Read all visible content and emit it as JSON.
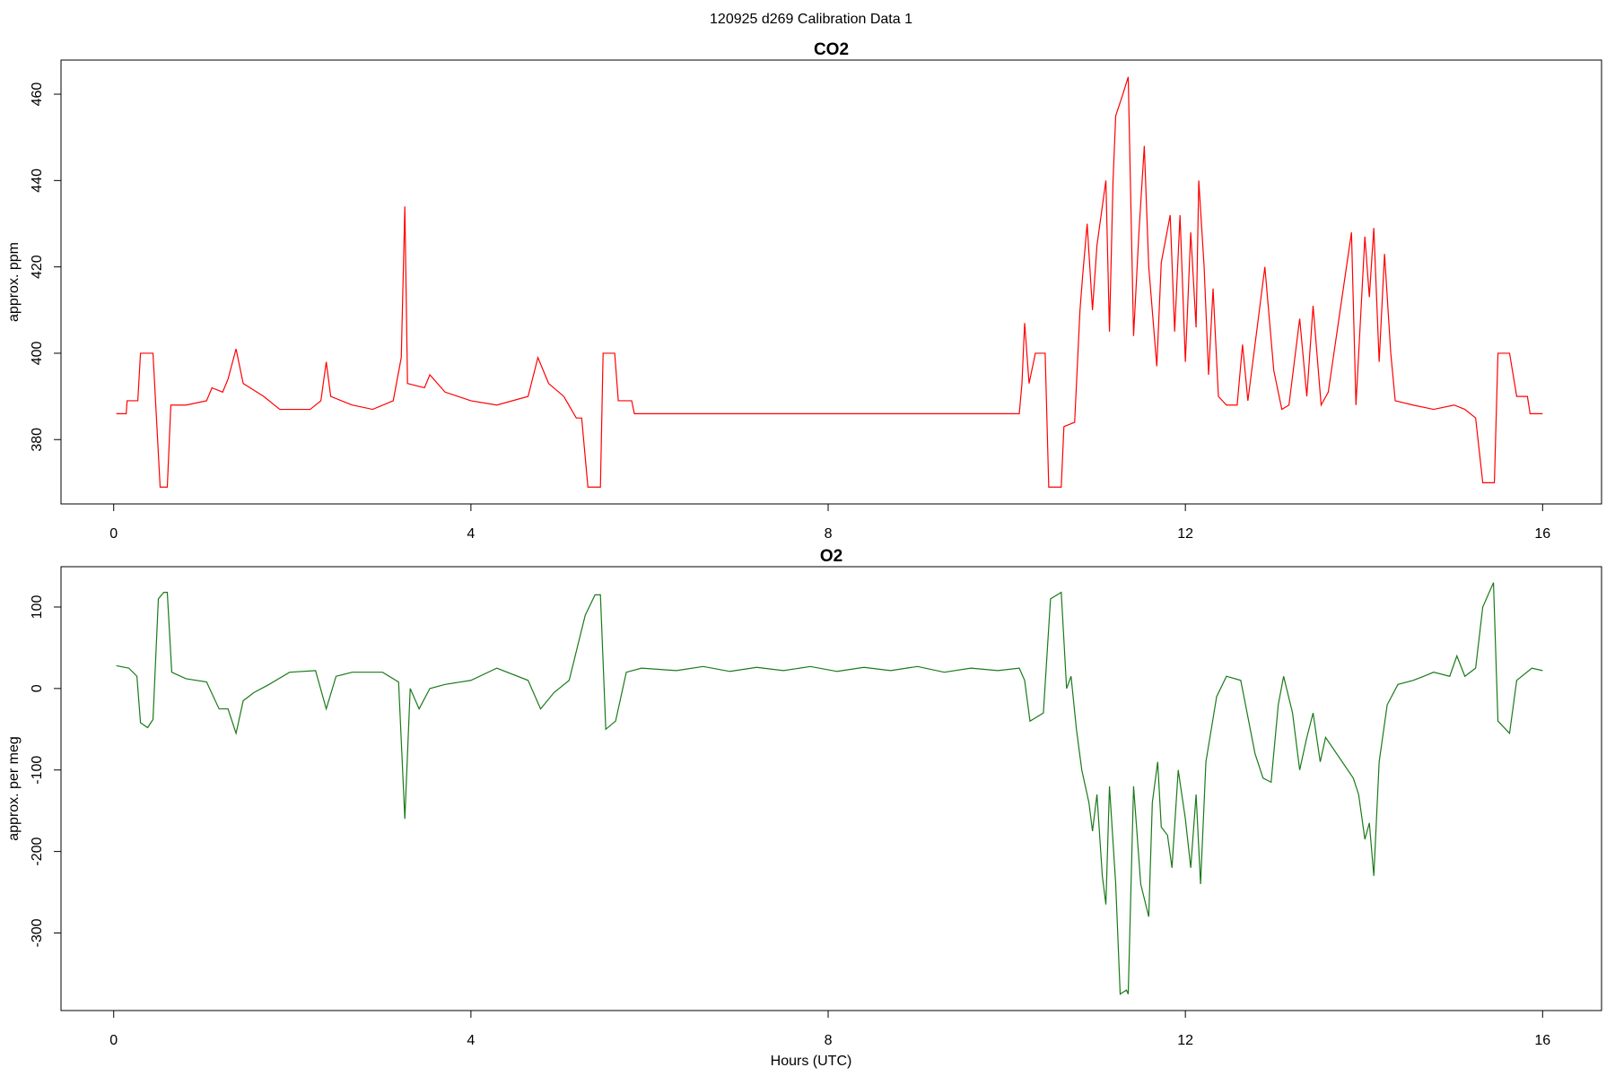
{
  "title": "120925   d269   Calibration Data 1",
  "chart_data": [
    {
      "type": "line",
      "title": "CO2",
      "y_label": "approx. ppm",
      "color": "#ff0000",
      "xlim": [
        -0.59,
        16.66
      ],
      "xticks": [
        0,
        4,
        8,
        12,
        16
      ],
      "ylim": [
        365.1,
        467.9
      ],
      "yticks": [
        380,
        400,
        420,
        440,
        460
      ],
      "x": [
        0.03,
        0.14,
        0.15,
        0.27,
        0.3,
        0.44,
        0.52,
        0.6,
        0.64,
        0.81,
        1.04,
        1.1,
        1.22,
        1.28,
        1.37,
        1.45,
        1.68,
        1.86,
        2.2,
        2.32,
        2.38,
        2.43,
        2.67,
        2.9,
        3.13,
        3.22,
        3.26,
        3.29,
        3.48,
        3.54,
        3.71,
        4.0,
        4.29,
        4.64,
        4.75,
        4.87,
        5.04,
        5.18,
        5.24,
        5.31,
        5.45,
        5.48,
        5.61,
        5.65,
        5.8,
        5.83,
        6.84,
        8.0,
        9.16,
        10.14,
        10.17,
        10.2,
        10.25,
        10.32,
        10.43,
        10.47,
        10.61,
        10.64,
        10.76,
        10.82,
        10.85,
        10.9,
        10.96,
        11.01,
        11.11,
        11.15,
        11.19,
        11.22,
        11.3,
        11.36,
        11.42,
        11.48,
        11.54,
        11.59,
        11.68,
        11.73,
        11.83,
        11.88,
        11.94,
        12.0,
        12.06,
        12.12,
        12.15,
        12.21,
        12.26,
        12.31,
        12.37,
        12.46,
        12.58,
        12.64,
        12.7,
        12.89,
        12.99,
        13.08,
        13.16,
        13.28,
        13.36,
        13.43,
        13.52,
        13.6,
        13.86,
        13.91,
        14.01,
        14.06,
        14.11,
        14.17,
        14.23,
        14.3,
        14.35,
        14.55,
        14.78,
        15.01,
        15.13,
        15.25,
        15.33,
        15.46,
        15.5,
        15.63,
        15.71,
        15.83,
        15.86,
        16.0
      ],
      "values": [
        386,
        386,
        389,
        389,
        400,
        400,
        369,
        369,
        388,
        388,
        389,
        392,
        391,
        394,
        401,
        393,
        390,
        387,
        387,
        389,
        398,
        390,
        388,
        387,
        389,
        399,
        434,
        393,
        392,
        395,
        391,
        389,
        388,
        390,
        399,
        393,
        390,
        385,
        385,
        369,
        369,
        400,
        400,
        389,
        389,
        386,
        386,
        386,
        386,
        386,
        393,
        407,
        393,
        400,
        400,
        369,
        369,
        383,
        384,
        410,
        418,
        430,
        410,
        425,
        440,
        405,
        440,
        455,
        460,
        464,
        404,
        428,
        448,
        420,
        397,
        421,
        432,
        405,
        432,
        398,
        428,
        406,
        440,
        420,
        395,
        415,
        390,
        388,
        388,
        402,
        389,
        420,
        396,
        387,
        388,
        408,
        390,
        411,
        388,
        391,
        428,
        388,
        427,
        413,
        429,
        398,
        423,
        400,
        389,
        388,
        387,
        388,
        387,
        385,
        370,
        370,
        400,
        400,
        390,
        390,
        386,
        386
      ]
    },
    {
      "type": "line",
      "title": "O2",
      "y_label": "approx. per meg",
      "x_label": "Hours (UTC)",
      "color": "#1a7a1a",
      "xlim": [
        -0.59,
        16.66
      ],
      "xticks": [
        0,
        4,
        8,
        12,
        16
      ],
      "ylim": [
        -395.2,
        149.5
      ],
      "yticks": [
        -300,
        -200,
        -100,
        0,
        100
      ],
      "x": [
        0.03,
        0.17,
        0.26,
        0.3,
        0.38,
        0.44,
        0.5,
        0.56,
        0.6,
        0.65,
        0.81,
        1.04,
        1.18,
        1.28,
        1.37,
        1.45,
        1.57,
        1.74,
        1.97,
        2.26,
        2.38,
        2.49,
        2.67,
        3.01,
        3.19,
        3.26,
        3.32,
        3.42,
        3.54,
        3.71,
        4.0,
        4.29,
        4.64,
        4.78,
        4.93,
        5.1,
        5.28,
        5.39,
        5.45,
        5.51,
        5.62,
        5.74,
        5.91,
        6.3,
        6.6,
        6.9,
        7.2,
        7.5,
        7.8,
        8.1,
        8.4,
        8.7,
        9.0,
        9.3,
        9.6,
        9.9,
        10.14,
        10.2,
        10.26,
        10.41,
        10.49,
        10.61,
        10.67,
        10.72,
        10.78,
        10.84,
        10.92,
        10.96,
        11.01,
        11.07,
        11.11,
        11.15,
        11.22,
        11.27,
        11.34,
        11.36,
        11.42,
        11.5,
        11.59,
        11.63,
        11.69,
        11.73,
        11.8,
        11.85,
        11.92,
        12.0,
        12.06,
        12.12,
        12.17,
        12.23,
        12.29,
        12.35,
        12.46,
        12.62,
        12.7,
        12.78,
        12.87,
        12.96,
        13.04,
        13.1,
        13.2,
        13.28,
        13.36,
        13.43,
        13.51,
        13.57,
        13.88,
        13.94,
        14.01,
        14.06,
        14.11,
        14.17,
        14.26,
        14.38,
        14.55,
        14.67,
        14.78,
        14.96,
        15.04,
        15.13,
        15.25,
        15.33,
        15.45,
        15.5,
        15.63,
        15.71,
        15.88,
        16.0
      ],
      "values": [
        28,
        25,
        15,
        -42,
        -48,
        -38,
        110,
        118,
        118,
        20,
        12,
        8,
        -25,
        -25,
        -55,
        -15,
        -5,
        5,
        20,
        22,
        -25,
        15,
        20,
        20,
        8,
        -160,
        0,
        -25,
        0,
        5,
        10,
        25,
        10,
        -25,
        -5,
        10,
        90,
        115,
        115,
        -50,
        -40,
        20,
        25,
        22,
        27,
        21,
        26,
        22,
        27,
        21,
        26,
        22,
        27,
        20,
        25,
        22,
        25,
        10,
        -40,
        -30,
        110,
        118,
        0,
        15,
        -50,
        -100,
        -140,
        -175,
        -130,
        -230,
        -265,
        -120,
        -240,
        -375,
        -370,
        -375,
        -120,
        -240,
        -280,
        -140,
        -90,
        -170,
        -180,
        -220,
        -100,
        -160,
        -220,
        -130,
        -240,
        -90,
        -50,
        -10,
        15,
        10,
        -35,
        -80,
        -110,
        -115,
        -20,
        15,
        -30,
        -100,
        -60,
        -30,
        -90,
        -60,
        -110,
        -130,
        -185,
        -165,
        -230,
        -90,
        -20,
        5,
        10,
        15,
        20,
        15,
        40,
        15,
        25,
        100,
        130,
        -40,
        -55,
        10,
        25,
        22
      ]
    }
  ]
}
